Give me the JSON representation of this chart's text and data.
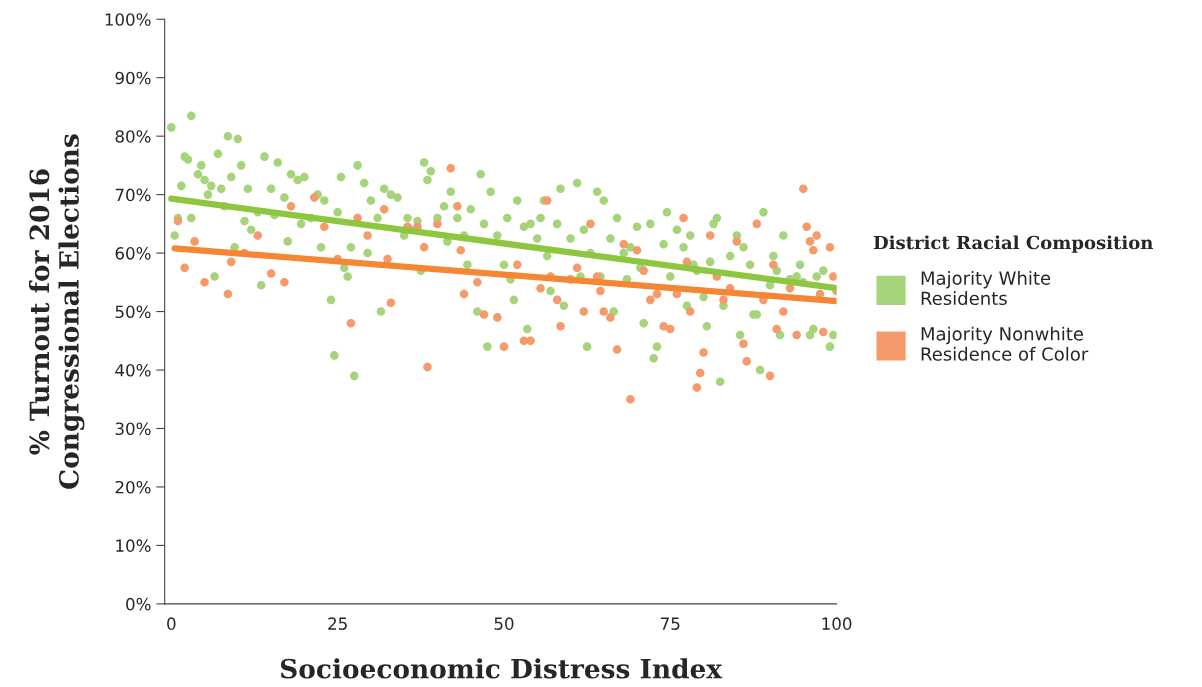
{
  "chart_data": {
    "type": "scatter",
    "xlabel": "Socioeconomic Distress Index",
    "ylabel": "% Turnout for 2016\nCongressional Elections",
    "legend_title": "District Racial Composition",
    "legend": "right",
    "grid": false,
    "xlim": [
      -1,
      100
    ],
    "xticks": [
      0,
      25,
      50,
      75,
      100
    ],
    "ylim": [
      0,
      100
    ],
    "yticks": [
      {
        "value": 0,
        "label": "0%"
      },
      {
        "value": 10,
        "label": "10%"
      },
      {
        "value": 20,
        "label": "20%"
      },
      {
        "value": 30,
        "label": "30%"
      },
      {
        "value": 40,
        "label": "40%"
      },
      {
        "value": 50,
        "label": "50%"
      },
      {
        "value": 60,
        "label": "60%"
      },
      {
        "value": 70,
        "label": "70%"
      },
      {
        "value": 80,
        "label": "80%"
      },
      {
        "value": 90,
        "label": "90%"
      },
      {
        "value": 100,
        "label": "100%"
      }
    ],
    "series": [
      {
        "name": "Majority White\nResidents",
        "marker": "circle",
        "color": "#a6d47a",
        "x": [
          0,
          0.5,
          1,
          1.5,
          2,
          2.5,
          3,
          3,
          4,
          4.5,
          5,
          5.5,
          6,
          6.5,
          7,
          7.5,
          8,
          8.5,
          9,
          9.5,
          10,
          10.5,
          11,
          11.5,
          12,
          13,
          13.5,
          14,
          15,
          15.5,
          16,
          17,
          17.5,
          18,
          19,
          19.5,
          20,
          21,
          22,
          22.5,
          23,
          24,
          24.5,
          25,
          25.5,
          26,
          26.5,
          27,
          27.5,
          28,
          29,
          29.5,
          30,
          31,
          31.5,
          32,
          33,
          34,
          35,
          35.5,
          36,
          37,
          37.5,
          38,
          38.5,
          39,
          40,
          41,
          41.5,
          42,
          43,
          44,
          44.5,
          45,
          46,
          46.5,
          47,
          47.5,
          48,
          49,
          50,
          50.5,
          51,
          51.5,
          52,
          53,
          53.5,
          54,
          55,
          55.5,
          56,
          56.5,
          57,
          58,
          58.5,
          59,
          60,
          61,
          61.5,
          62,
          62.5,
          63,
          64,
          64.5,
          65,
          66,
          66.5,
          67,
          68,
          68.5,
          69,
          70,
          70.5,
          71,
          72,
          72.5,
          73,
          74,
          74.5,
          75,
          76,
          77,
          77.5,
          78,
          78.5,
          79,
          80,
          80.5,
          81,
          81.5,
          82,
          82.5,
          83,
          84,
          85,
          85.5,
          86,
          87,
          87.5,
          88,
          88.5,
          89,
          90,
          90.5,
          91,
          91.5,
          92,
          93,
          94,
          94.5,
          95,
          96,
          96.5,
          97,
          98,
          99,
          99.5
        ],
        "values": [
          81.5,
          63,
          66,
          71.5,
          76.5,
          76,
          83.5,
          66,
          73.5,
          75,
          72.5,
          70,
          71.5,
          56,
          77,
          71,
          68,
          80,
          73,
          61,
          79.5,
          75,
          65.5,
          71,
          64,
          67,
          54.5,
          76.5,
          71,
          66.5,
          75.5,
          69.5,
          62,
          73.5,
          72.5,
          65,
          73,
          66,
          70,
          61,
          69,
          52,
          42.5,
          67,
          73,
          57.5,
          56,
          61,
          39,
          75,
          72,
          60,
          69,
          66,
          50,
          71,
          70,
          69.5,
          63,
          66,
          64,
          65.5,
          57,
          75.5,
          72.5,
          74,
          66,
          68,
          62,
          70.5,
          66,
          63,
          58,
          67.5,
          50,
          73.5,
          65,
          44,
          70.5,
          63,
          58,
          66,
          55.5,
          52,
          69,
          64.5,
          47,
          65,
          62.5,
          66,
          69,
          59.5,
          53.5,
          65,
          71,
          51,
          62.5,
          72,
          56,
          64,
          44,
          60,
          70.5,
          56,
          69,
          62.5,
          50,
          66,
          60,
          55.5,
          61,
          64.5,
          57.5,
          48,
          65,
          42,
          44,
          61.5,
          67,
          56,
          64,
          61,
          51,
          63,
          58,
          57,
          52.5,
          47.5,
          58.5,
          65,
          66,
          38,
          51,
          59.5,
          63,
          46,
          61,
          58,
          49.5,
          49.5,
          40,
          67,
          54.5,
          59.5,
          57,
          46,
          63,
          55.5,
          56,
          58,
          55,
          46,
          47,
          56,
          57,
          44,
          46
        ]
      },
      {
        "name": "Majority Nonwhite\nResidence of Color",
        "marker": "circle",
        "color": "#f59a6a",
        "x": [
          1,
          2,
          3.5,
          5,
          8.5,
          9,
          11,
          13,
          15,
          17,
          18,
          21.5,
          23,
          25,
          27,
          28,
          29.5,
          32,
          32.5,
          33,
          35.5,
          37,
          38,
          38.5,
          40,
          42,
          43,
          43.5,
          44,
          46,
          47,
          49,
          50,
          52,
          53,
          54,
          55.5,
          56.5,
          57,
          58,
          58.5,
          60,
          61,
          62,
          63,
          64,
          64.5,
          65,
          66,
          67,
          68,
          69,
          70,
          71,
          72,
          73,
          74,
          75,
          76,
          77,
          77.5,
          78,
          79,
          79.5,
          80,
          81,
          82,
          83,
          84,
          85,
          86,
          86.5,
          88,
          89,
          90,
          90.5,
          91,
          92,
          93,
          94,
          95,
          95.5,
          96,
          96.5,
          97,
          97.5,
          98,
          99,
          99.5,
          100
        ],
        "values": [
          65.5,
          57.5,
          62,
          55,
          53,
          58.5,
          60,
          63,
          56.5,
          55,
          68,
          69.5,
          64.5,
          59,
          48,
          66,
          63,
          67.5,
          59,
          51.5,
          64.5,
          64.5,
          61,
          40.5,
          65,
          74.5,
          68,
          60.5,
          53,
          55,
          49.5,
          49,
          44,
          58,
          45,
          45,
          54,
          69,
          56,
          52,
          47.5,
          55.5,
          57.5,
          50,
          65,
          56,
          53.5,
          50,
          49,
          43.5,
          61.5,
          35,
          60.5,
          57,
          52,
          53,
          47.5,
          47,
          53,
          66,
          58.5,
          50,
          37,
          39.5,
          43,
          63,
          56,
          52,
          54,
          62,
          44.5,
          41.5,
          65,
          52,
          39,
          58,
          47,
          50,
          54,
          46,
          71,
          64.5,
          62,
          60.5,
          63,
          53,
          46.5,
          61,
          56,
          53.5
        ]
      },
      {
        "type": "line",
        "color": "#8dc63f",
        "x": [
          0,
          100
        ],
        "values": [
          69.3,
          54
        ]
      },
      {
        "type": "line",
        "color": "#f58634",
        "x": [
          0.5,
          100
        ],
        "values": [
          60.8,
          51.8
        ]
      }
    ]
  }
}
